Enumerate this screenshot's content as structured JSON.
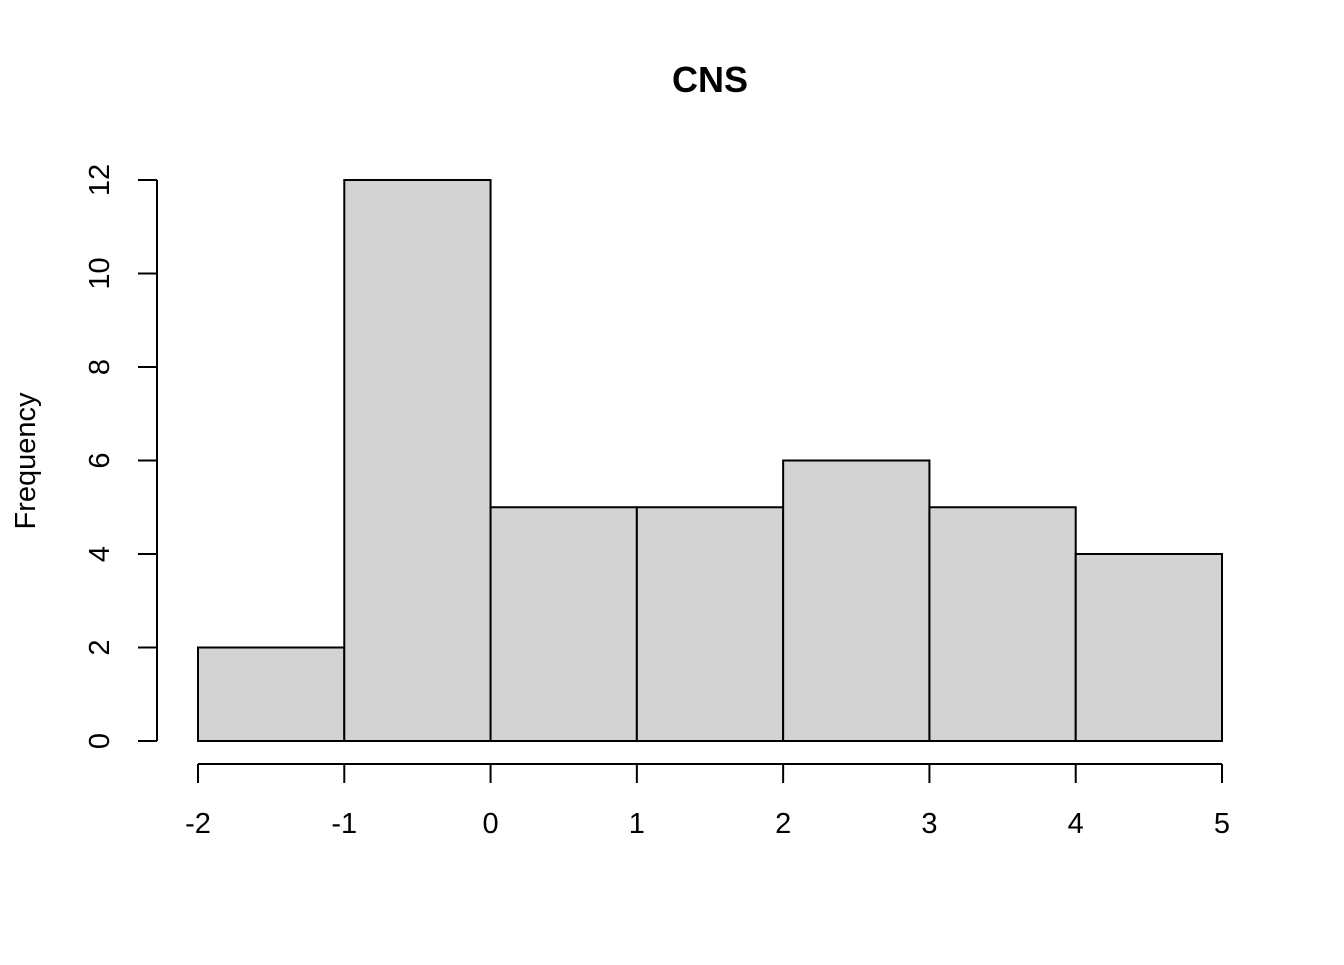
{
  "chart_data": {
    "type": "bar",
    "title": "CNS",
    "xlabel": "",
    "ylabel": "Frequency",
    "bins": [
      {
        "from": -2,
        "to": -1,
        "count": 2
      },
      {
        "from": -1,
        "to": 0,
        "count": 12
      },
      {
        "from": 0,
        "to": 1,
        "count": 5
      },
      {
        "from": 1,
        "to": 2,
        "count": 5
      },
      {
        "from": 2,
        "to": 3,
        "count": 6
      },
      {
        "from": 3,
        "to": 4,
        "count": 5
      },
      {
        "from": 4,
        "to": 5,
        "count": 4
      }
    ],
    "xticks": [
      "-2",
      "-1",
      "0",
      "1",
      "2",
      "3",
      "4",
      "5"
    ],
    "yticks": [
      "0",
      "2",
      "4",
      "6",
      "8",
      "10",
      "12"
    ],
    "xlim": [
      -2,
      5
    ],
    "ylim": [
      0,
      12
    ],
    "bar_color": "#d3d3d3",
    "edge_color": "#000000",
    "grid": false,
    "legend": "none"
  }
}
